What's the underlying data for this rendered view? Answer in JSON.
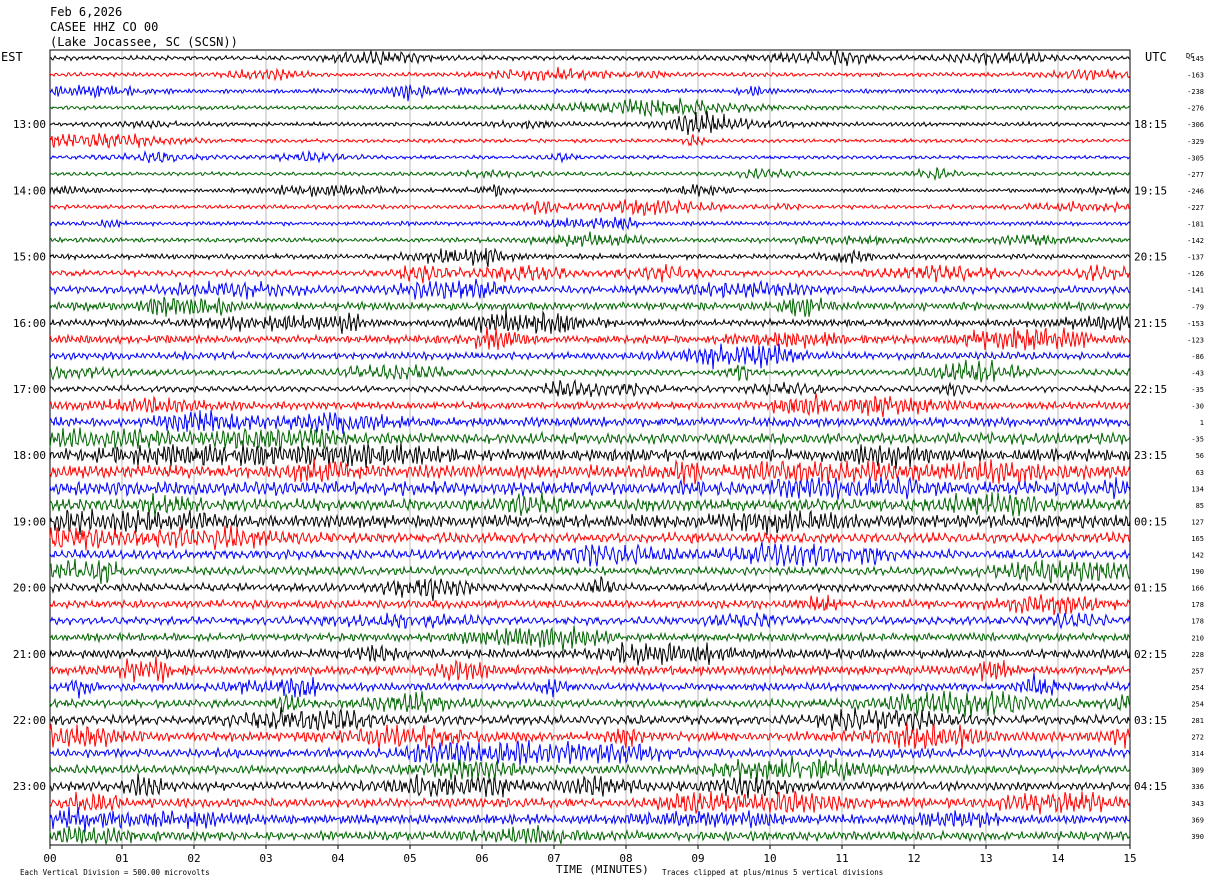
{
  "header": {
    "date": "Feb 6,2026",
    "station": "CASEE HHZ CO 00",
    "location": "(Lake Jocassee, SC (SCSN))"
  },
  "left_zone_label": "EST",
  "right_zone_label": "UTC",
  "dc_label": "DC",
  "footer": {
    "scale_note": "Each Vertical Division =  500.00 microvolts",
    "clip_note": "Traces clipped at plus/minus 5 vertical divisions",
    "xlabel": "TIME (MINUTES)"
  },
  "chart_data": {
    "type": "line",
    "subtype": "helicorder",
    "title": "CASEE HHZ CO 00",
    "xlabel": "TIME (MINUTES)",
    "ylabel": "",
    "xlim": [
      0,
      15
    ],
    "x_ticks": [
      "00",
      "01",
      "02",
      "03",
      "04",
      "05",
      "06",
      "07",
      "08",
      "09",
      "10",
      "11",
      "12",
      "13",
      "14",
      "15"
    ],
    "vertical_grid": true,
    "minutes_per_line": 15,
    "trace_colors": [
      "#000000",
      "#ff0000",
      "#0000ff",
      "#006400"
    ],
    "left_hour_labels": [
      {
        "line": 4,
        "label": "13:00"
      },
      {
        "line": 8,
        "label": "14:00"
      },
      {
        "line": 12,
        "label": "15:00"
      },
      {
        "line": 16,
        "label": "16:00"
      },
      {
        "line": 20,
        "label": "17:00"
      },
      {
        "line": 24,
        "label": "18:00"
      },
      {
        "line": 28,
        "label": "19:00"
      },
      {
        "line": 32,
        "label": "20:00"
      },
      {
        "line": 36,
        "label": "21:00"
      },
      {
        "line": 40,
        "label": "22:00"
      },
      {
        "line": 44,
        "label": "23:00"
      }
    ],
    "right_hour_labels": [
      {
        "line": 4,
        "label": "18:15"
      },
      {
        "line": 8,
        "label": "19:15"
      },
      {
        "line": 12,
        "label": "20:15"
      },
      {
        "line": 16,
        "label": "21:15"
      },
      {
        "line": 20,
        "label": "22:15"
      },
      {
        "line": 24,
        "label": "23:15"
      },
      {
        "line": 28,
        "label": "00:15"
      },
      {
        "line": 32,
        "label": "01:15"
      },
      {
        "line": 36,
        "label": "02:15"
      },
      {
        "line": 40,
        "label": "03:15"
      },
      {
        "line": 44,
        "label": "04:15"
      }
    ],
    "dc_offsets": [
      145,
      163,
      238,
      276,
      306,
      329,
      305,
      277,
      246,
      227,
      181,
      142,
      137,
      126,
      141,
      79,
      153,
      123,
      86,
      43,
      35,
      30,
      1,
      35,
      56,
      63,
      134,
      85,
      127,
      165,
      142,
      190,
      166,
      178,
      178,
      210,
      228,
      257,
      254,
      254,
      281,
      272,
      314,
      309,
      336,
      343,
      369,
      390
    ],
    "dc_offset_signs": [
      -1,
      -1,
      -1,
      -1,
      -1,
      -1,
      -1,
      -1,
      -1,
      -1,
      -1,
      -1,
      -1,
      -1,
      -1,
      -1,
      -1,
      -1,
      -1,
      -1,
      -1,
      -1,
      1,
      -1,
      1,
      1,
      1,
      1,
      1,
      1,
      1,
      1,
      1,
      1,
      1,
      1,
      1,
      1,
      1,
      1,
      1,
      1,
      1,
      1,
      1,
      1,
      1,
      1
    ],
    "line_activity": [
      1.0,
      0.9,
      0.9,
      0.9,
      0.9,
      0.8,
      0.8,
      0.8,
      0.8,
      0.9,
      0.9,
      1.0,
      1.1,
      1.3,
      1.6,
      1.8,
      1.5,
      1.7,
      1.6,
      1.4,
      1.3,
      1.6,
      2.0,
      2.4,
      2.6,
      2.8,
      3.0,
      2.6,
      2.8,
      2.2,
      2.0,
      1.8,
      1.8,
      1.8,
      1.7,
      1.7,
      2.0,
      2.0,
      1.7,
      1.8,
      2.0,
      2.0,
      1.9,
      1.9,
      1.9,
      2.0,
      2.0,
      2.0
    ]
  }
}
